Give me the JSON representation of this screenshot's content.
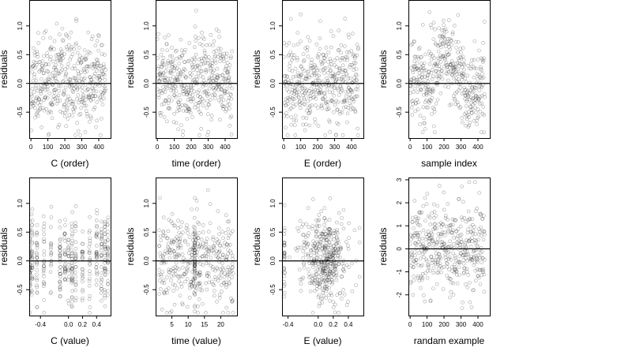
{
  "figure": {
    "panel_count": 8,
    "point_color": "#000000",
    "point_opacity": 0.35
  },
  "chart_data": [
    {
      "id": "p1",
      "type": "scatter",
      "xlabel": "C (order)",
      "ylabel": "residuals",
      "xlim": [
        -10,
        470
      ],
      "ylim": [
        -0.95,
        1.45
      ],
      "xticks": [
        0,
        100,
        200,
        300,
        400
      ],
      "xtick_labels": [
        "0",
        "100",
        "200",
        "300",
        "400"
      ],
      "yticks": [
        -0.5,
        0.0,
        0.5,
        1.0
      ],
      "ytick_labels": [
        "-0.5",
        "0.0",
        "0.5",
        "1.0"
      ],
      "hline": 0,
      "points": {
        "n": 440,
        "x_mode": "index",
        "x_start": 0,
        "x_end": 440,
        "y_mean": 0.02,
        "y_sd": 0.38,
        "y_min": -0.9,
        "y_max": 1.33,
        "seed": 11
      }
    },
    {
      "id": "p2",
      "type": "scatter",
      "xlabel": "time (order)",
      "ylabel": "residuals",
      "xlim": [
        -10,
        470
      ],
      "ylim": [
        -0.95,
        1.45
      ],
      "xticks": [
        0,
        100,
        200,
        300,
        400
      ],
      "xtick_labels": [
        "0",
        "100",
        "200",
        "300",
        "400"
      ],
      "yticks": [
        -0.5,
        0.0,
        0.5,
        1.0
      ],
      "ytick_labels": [
        "-0.5",
        "0.0",
        "0.5",
        "1.0"
      ],
      "hline": 0,
      "points": {
        "n": 440,
        "x_mode": "index",
        "x_start": 0,
        "x_end": 440,
        "y_mean": 0.02,
        "y_sd": 0.38,
        "y_min": -0.9,
        "y_max": 1.33,
        "seed": 23
      }
    },
    {
      "id": "p3",
      "type": "scatter",
      "xlabel": "E (order)",
      "ylabel": "residuals",
      "xlim": [
        -10,
        470
      ],
      "ylim": [
        -0.95,
        1.45
      ],
      "xticks": [
        0,
        100,
        200,
        300,
        400
      ],
      "xtick_labels": [
        "0",
        "100",
        "200",
        "300",
        "400"
      ],
      "yticks": [
        -0.5,
        0.0,
        0.5,
        1.0
      ],
      "ytick_labels": [
        "-0.5",
        "0.0",
        "0.5",
        "1.0"
      ],
      "hline": 0,
      "points": {
        "n": 440,
        "x_mode": "index",
        "x_start": 0,
        "x_end": 440,
        "y_mean": 0.02,
        "y_sd": 0.38,
        "y_min": -0.9,
        "y_max": 1.33,
        "seed": 37
      }
    },
    {
      "id": "p4",
      "type": "scatter",
      "xlabel": "sample index",
      "ylabel": "residuals",
      "xlim": [
        -10,
        470
      ],
      "ylim": [
        -0.95,
        1.45
      ],
      "xticks": [
        0,
        100,
        200,
        300,
        400
      ],
      "xtick_labels": [
        "0",
        "100",
        "200",
        "300",
        "400"
      ],
      "yticks": [
        -0.5,
        0.0,
        0.5,
        1.0
      ],
      "ytick_labels": [
        "-0.5",
        "0.0",
        "0.5",
        "1.0"
      ],
      "hline": 0,
      "points": {
        "n": 440,
        "x_mode": "index",
        "x_start": 0,
        "x_end": 440,
        "y_mean": 0.02,
        "y_sd": 0.36,
        "y_min": -0.85,
        "y_max": 1.33,
        "seed": 41,
        "trend": [
          [
            0,
            0.15
          ],
          [
            100,
            -0.05
          ],
          [
            200,
            0.55
          ],
          [
            260,
            0.25
          ],
          [
            350,
            -0.2
          ],
          [
            440,
            0.0
          ]
        ]
      }
    },
    {
      "id": "p5",
      "type": "scatter",
      "xlabel": "C (value)",
      "ylabel": "residuals",
      "xlim": [
        -0.56,
        0.6
      ],
      "ylim": [
        -0.95,
        1.45
      ],
      "xticks": [
        -0.4,
        0.0,
        0.2,
        0.4
      ],
      "xtick_labels": [
        "-0.4",
        "0.0",
        "0.2",
        "0.4"
      ],
      "yticks": [
        -0.5,
        0.0,
        0.5,
        1.0
      ],
      "ytick_labels": [
        "-0.5",
        "0.0",
        "0.5",
        "1.0"
      ],
      "hline": 0,
      "points": {
        "n": 440,
        "x_mode": "levels",
        "levels": [
          -0.55,
          -0.52,
          -0.45,
          -0.35,
          -0.25,
          -0.12,
          -0.05,
          0.0,
          0.05,
          0.1,
          0.2,
          0.3,
          0.4,
          0.47,
          0.52,
          0.56
        ],
        "jitter": 0.006,
        "y_mean": 0.02,
        "y_sd": 0.38,
        "y_min": -0.9,
        "y_max": 1.33,
        "seed": 53
      }
    },
    {
      "id": "p6",
      "type": "scatter",
      "xlabel": "time (value)",
      "ylabel": "residuals",
      "xlim": [
        0,
        25
      ],
      "ylim": [
        -0.95,
        1.45
      ],
      "xticks": [
        5,
        10,
        15,
        20
      ],
      "xtick_labels": [
        "5",
        "10",
        "15",
        "20"
      ],
      "yticks": [
        -0.5,
        0.0,
        0.5,
        1.0
      ],
      "ytick_labels": [
        "-0.5",
        "0.0",
        "0.5",
        "1.0"
      ],
      "hline": 0,
      "points": {
        "n": 440,
        "x_mode": "mixed",
        "x_start": 1,
        "x_end": 24,
        "levels": [
          12
        ],
        "level_share": 0.14,
        "jitter": 0.05,
        "y_mean": 0.02,
        "y_sd": 0.38,
        "y_min": -0.9,
        "y_max": 1.33,
        "seed": 67
      }
    },
    {
      "id": "p7",
      "type": "scatter",
      "xlabel": "E (value)",
      "ylabel": "residuals",
      "xlim": [
        -0.48,
        0.6
      ],
      "ylim": [
        -0.95,
        1.45
      ],
      "xticks": [
        -0.4,
        0.0,
        0.2,
        0.4
      ],
      "xtick_labels": [
        "-0.4",
        "0.0",
        "0.2",
        "0.4"
      ],
      "yticks": [
        -0.5,
        0.0,
        0.5,
        1.0
      ],
      "ytick_labels": [
        "-0.5",
        "0.0",
        "0.5",
        "1.0"
      ],
      "hline": 0,
      "points": {
        "n": 440,
        "x_mode": "cluster",
        "x_center": 0.08,
        "x_sd": 0.16,
        "x_min": -0.45,
        "x_max": 0.55,
        "levels": [
          -0.45
        ],
        "level_share": 0.08,
        "y_mean": 0.02,
        "y_sd": 0.38,
        "y_min": -0.9,
        "y_max": 1.33,
        "seed": 79
      }
    },
    {
      "id": "p8",
      "type": "scatter",
      "xlabel": "randam example",
      "ylabel": "residuals",
      "xlim": [
        -10,
        470
      ],
      "ylim": [
        -2.9,
        3.1
      ],
      "xticks": [
        0,
        100,
        200,
        300,
        400
      ],
      "xtick_labels": [
        "0",
        "100",
        "200",
        "300",
        "400"
      ],
      "yticks": [
        -2,
        -1,
        0,
        1,
        2,
        3
      ],
      "ytick_labels": [
        "-2",
        "-1",
        "0",
        "1",
        "2",
        "3"
      ],
      "hline": 0,
      "points": {
        "n": 440,
        "x_mode": "index",
        "x_start": 0,
        "x_end": 440,
        "y_mean": 0.0,
        "y_sd": 1.0,
        "y_min": -2.8,
        "y_max": 2.9,
        "seed": 97
      }
    }
  ]
}
